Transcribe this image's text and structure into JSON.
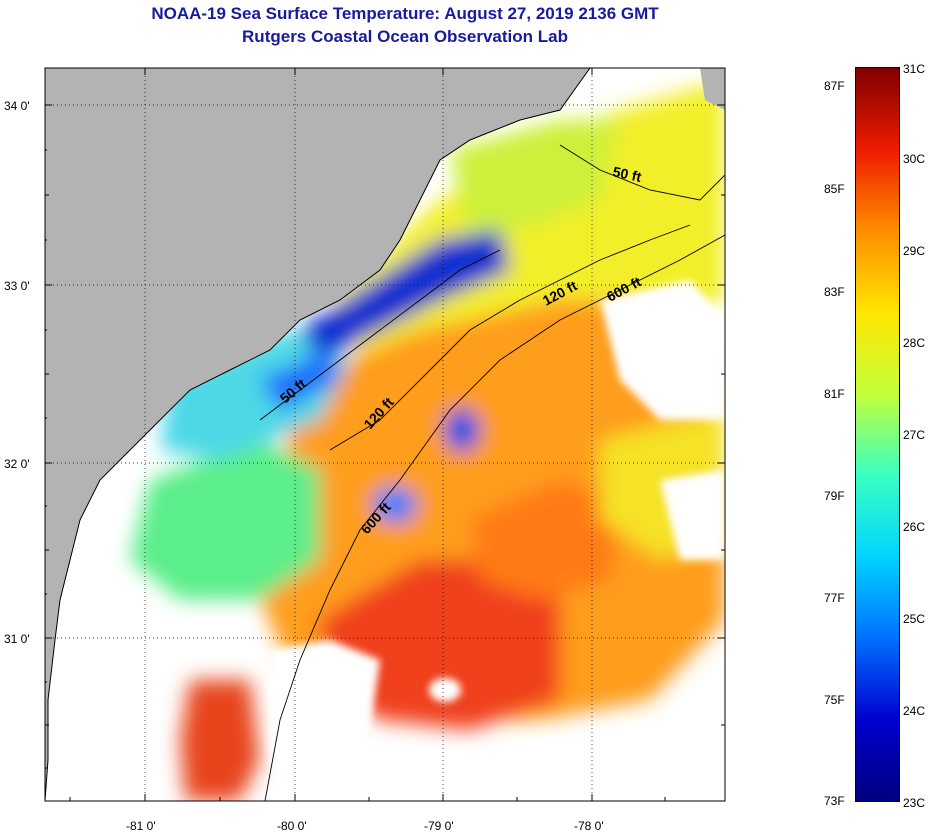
{
  "title": "NOAA-19 Sea Surface Temperature:  August 27, 2019 2136 GMT",
  "subtitle": "Rutgers Coastal Ocean Observation Lab",
  "map": {
    "lon_labels": [
      "-81 0'",
      "-80 0'",
      "-79 0'",
      "-78 0'"
    ],
    "lat_labels": [
      "34 0'",
      "33 0'",
      "32 0'",
      "31 0'"
    ],
    "isobath_labels": [
      "50 ft",
      "120 ft",
      "600 ft",
      "50 ft",
      "120 ft",
      "600 ft"
    ],
    "colors": {
      "land": "#b3b3b3",
      "no_data": "#ffffff",
      "coastline": "#000000"
    }
  },
  "colorbar": {
    "fahrenheit_labels": [
      "87F",
      "85F",
      "83F",
      "81F",
      "79F",
      "77F",
      "75F",
      "73F"
    ],
    "celsius_labels": [
      "31C",
      "30C",
      "29C",
      "28C",
      "27C",
      "26C",
      "25C",
      "24C",
      "23C"
    ],
    "colors": [
      "#7f0000",
      "#ee1a00",
      "#ff8d00",
      "#ffe600",
      "#c4ff3a",
      "#39ffc2",
      "#00d4ff",
      "#0070ff",
      "#0000cf",
      "#00007f"
    ]
  }
}
